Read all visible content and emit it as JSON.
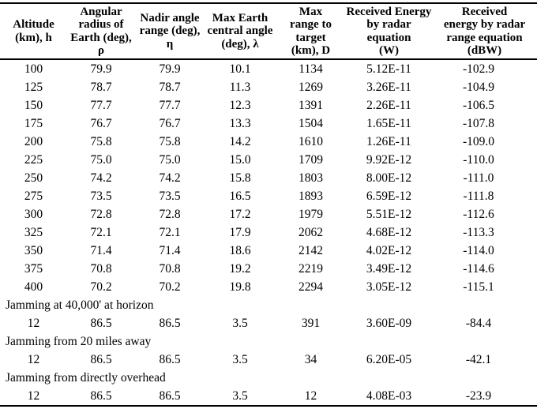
{
  "table": {
    "columns": [
      {
        "label": "Altitude\n(km), h"
      },
      {
        "label": "Angular\nradius of\nEarth (deg), ρ"
      },
      {
        "label": "Nadir angle\nrange (deg),\nη"
      },
      {
        "label": "Max Earth\ncentral angle\n(deg), λ"
      },
      {
        "label": "Max\nrange to\ntarget\n(km), D"
      },
      {
        "label": "Received Energy\nby radar equation\n(W)"
      },
      {
        "label": "Received\nenergy by radar\nrange equation\n(dBW)"
      }
    ],
    "rows": [
      [
        "100",
        "79.9",
        "79.9",
        "10.1",
        "1134",
        "5.12E-11",
        "-102.9"
      ],
      [
        "125",
        "78.7",
        "78.7",
        "11.3",
        "1269",
        "3.26E-11",
        "-104.9"
      ],
      [
        "150",
        "77.7",
        "77.7",
        "12.3",
        "1391",
        "2.26E-11",
        "-106.5"
      ],
      [
        "175",
        "76.7",
        "76.7",
        "13.3",
        "1504",
        "1.65E-11",
        "-107.8"
      ],
      [
        "200",
        "75.8",
        "75.8",
        "14.2",
        "1610",
        "1.26E-11",
        "-109.0"
      ],
      [
        "225",
        "75.0",
        "75.0",
        "15.0",
        "1709",
        "9.92E-12",
        "-110.0"
      ],
      [
        "250",
        "74.2",
        "74.2",
        "15.8",
        "1803",
        "8.00E-12",
        "-111.0"
      ],
      [
        "275",
        "73.5",
        "73.5",
        "16.5",
        "1893",
        "6.59E-12",
        "-111.8"
      ],
      [
        "300",
        "72.8",
        "72.8",
        "17.2",
        "1979",
        "5.51E-12",
        "-112.6"
      ],
      [
        "325",
        "72.1",
        "72.1",
        "17.9",
        "2062",
        "4.68E-12",
        "-113.3"
      ],
      [
        "350",
        "71.4",
        "71.4",
        "18.6",
        "2142",
        "4.02E-12",
        "-114.0"
      ],
      [
        "375",
        "70.8",
        "70.8",
        "19.2",
        "2219",
        "3.49E-12",
        "-114.6"
      ],
      [
        "400",
        "70.2",
        "70.2",
        "19.8",
        "2294",
        "3.05E-12",
        "-115.1"
      ]
    ],
    "sections": [
      {
        "label": "Jamming at 40,000' at horizon",
        "row": [
          "12",
          "86.5",
          "86.5",
          "3.5",
          "391",
          "3.60E-09",
          "-84.4"
        ]
      },
      {
        "label": "Jamming from 20 miles away",
        "row": [
          "12",
          "86.5",
          "86.5",
          "3.5",
          "34",
          "6.20E-05",
          "-42.1"
        ]
      },
      {
        "label": "Jamming from directly overhead",
        "row": [
          "12",
          "86.5",
          "86.5",
          "3.5",
          "12",
          "4.08E-03",
          "-23.9"
        ]
      }
    ],
    "colors": {
      "text": "#000000",
      "rule": "#000000",
      "background": "#ffffff"
    }
  }
}
